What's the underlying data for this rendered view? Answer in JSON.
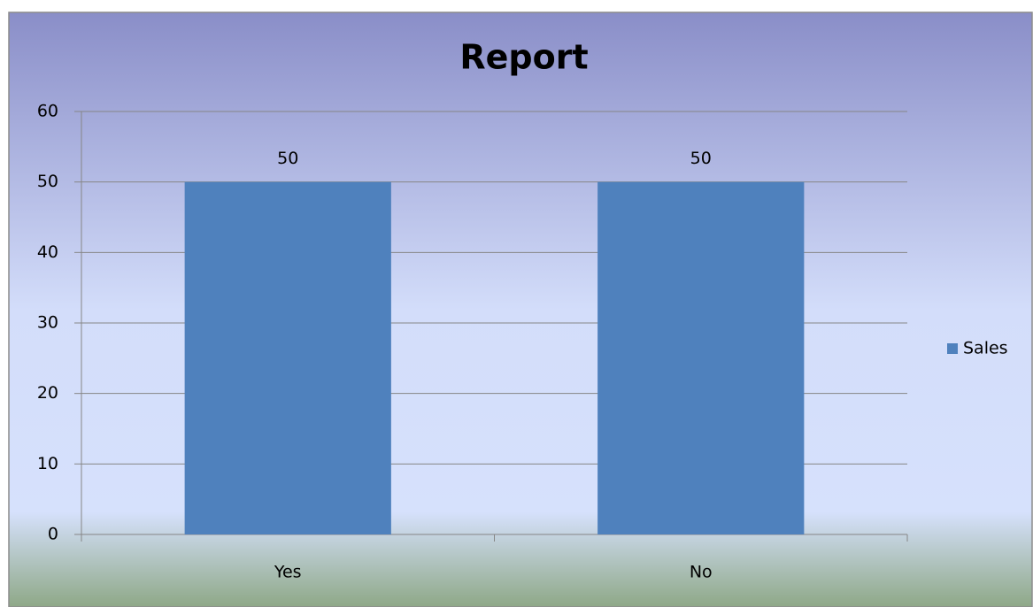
{
  "chart_data": {
    "type": "bar",
    "title": "Report",
    "categories": [
      "Yes",
      "No"
    ],
    "series": [
      {
        "name": "Sales",
        "color": "#4f81bd",
        "values": [
          50,
          50
        ]
      }
    ],
    "ylim": [
      0,
      60
    ],
    "yticks": [
      0,
      10,
      20,
      30,
      40,
      50,
      60
    ],
    "grid": true,
    "legend": "right"
  }
}
